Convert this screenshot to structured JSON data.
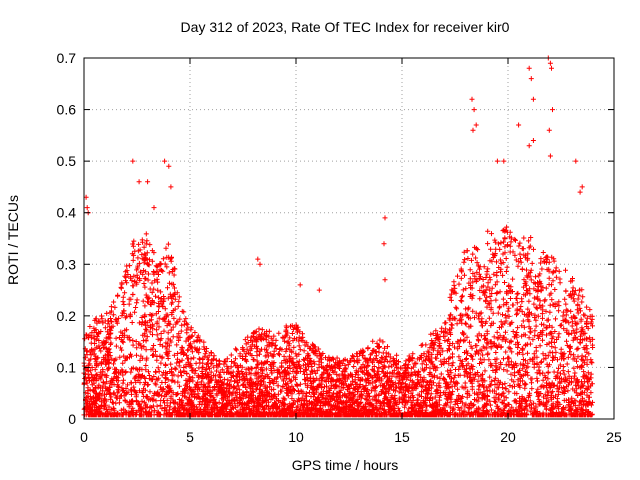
{
  "chart_data": {
    "type": "scatter",
    "title": "Day 312 of 2023, Rate Of TEC Index for receiver kir0",
    "xlabel": "GPS time / hours",
    "ylabel": "ROTI / TECUs",
    "xlim": [
      0,
      25
    ],
    "ylim": [
      0,
      0.7
    ],
    "x_ticks": [
      0,
      5,
      10,
      15,
      20,
      25
    ],
    "x_tick_labels": [
      "0",
      "5",
      "10",
      "15",
      "20",
      "25"
    ],
    "y_ticks": [
      0,
      0.1,
      0.2,
      0.3,
      0.4,
      0.5,
      0.6,
      0.7
    ],
    "y_tick_labels": [
      "0",
      "0.1",
      "0.2",
      "0.3",
      "0.4",
      "0.5",
      "0.6",
      "0.7"
    ],
    "grid": true,
    "marker": "+",
    "color": "#ff0000",
    "envelope": [
      [
        0.0,
        0.16
      ],
      [
        0.5,
        0.2
      ],
      [
        1.0,
        0.2
      ],
      [
        1.5,
        0.24
      ],
      [
        2.0,
        0.3
      ],
      [
        2.5,
        0.38
      ],
      [
        3.0,
        0.36
      ],
      [
        3.5,
        0.3
      ],
      [
        4.0,
        0.36
      ],
      [
        4.5,
        0.24
      ],
      [
        5.0,
        0.18
      ],
      [
        5.5,
        0.16
      ],
      [
        6.0,
        0.13
      ],
      [
        6.5,
        0.11
      ],
      [
        7.0,
        0.13
      ],
      [
        7.5,
        0.15
      ],
      [
        8.0,
        0.17
      ],
      [
        8.5,
        0.18
      ],
      [
        9.0,
        0.16
      ],
      [
        9.5,
        0.18
      ],
      [
        10.0,
        0.19
      ],
      [
        10.5,
        0.16
      ],
      [
        11.0,
        0.14
      ],
      [
        11.5,
        0.12
      ],
      [
        12.0,
        0.12
      ],
      [
        12.5,
        0.12
      ],
      [
        13.0,
        0.13
      ],
      [
        13.5,
        0.15
      ],
      [
        14.0,
        0.16
      ],
      [
        14.5,
        0.13
      ],
      [
        15.0,
        0.12
      ],
      [
        15.5,
        0.13
      ],
      [
        16.0,
        0.15
      ],
      [
        16.5,
        0.17
      ],
      [
        17.0,
        0.2
      ],
      [
        17.5,
        0.28
      ],
      [
        18.0,
        0.33
      ],
      [
        18.5,
        0.34
      ],
      [
        19.0,
        0.37
      ],
      [
        19.5,
        0.36
      ],
      [
        20.0,
        0.38
      ],
      [
        20.5,
        0.34
      ],
      [
        21.0,
        0.37
      ],
      [
        21.5,
        0.33
      ],
      [
        22.0,
        0.32
      ],
      [
        22.5,
        0.3
      ],
      [
        23.0,
        0.28
      ],
      [
        23.5,
        0.25
      ],
      [
        24.0,
        0.2
      ]
    ],
    "outliers": [
      [
        0.1,
        0.43
      ],
      [
        0.15,
        0.41
      ],
      [
        0.2,
        0.4
      ],
      [
        2.3,
        0.5
      ],
      [
        2.6,
        0.46
      ],
      [
        3.0,
        0.46
      ],
      [
        3.3,
        0.41
      ],
      [
        3.8,
        0.5
      ],
      [
        4.0,
        0.49
      ],
      [
        4.1,
        0.45
      ],
      [
        8.2,
        0.31
      ],
      [
        8.3,
        0.3
      ],
      [
        10.2,
        0.26
      ],
      [
        11.1,
        0.25
      ],
      [
        14.2,
        0.39
      ],
      [
        14.15,
        0.34
      ],
      [
        14.2,
        0.27
      ],
      [
        18.3,
        0.62
      ],
      [
        18.4,
        0.6
      ],
      [
        18.35,
        0.56
      ],
      [
        18.5,
        0.57
      ],
      [
        19.5,
        0.5
      ],
      [
        19.8,
        0.5
      ],
      [
        20.5,
        0.57
      ],
      [
        21.0,
        0.53
      ],
      [
        21.2,
        0.54
      ],
      [
        21.0,
        0.68
      ],
      [
        21.1,
        0.66
      ],
      [
        21.2,
        0.62
      ],
      [
        21.9,
        0.7
      ],
      [
        22.0,
        0.69
      ],
      [
        22.05,
        0.68
      ],
      [
        22.1,
        0.6
      ],
      [
        21.95,
        0.56
      ],
      [
        22.0,
        0.51
      ],
      [
        23.2,
        0.5
      ],
      [
        23.4,
        0.44
      ],
      [
        23.5,
        0.45
      ]
    ]
  }
}
